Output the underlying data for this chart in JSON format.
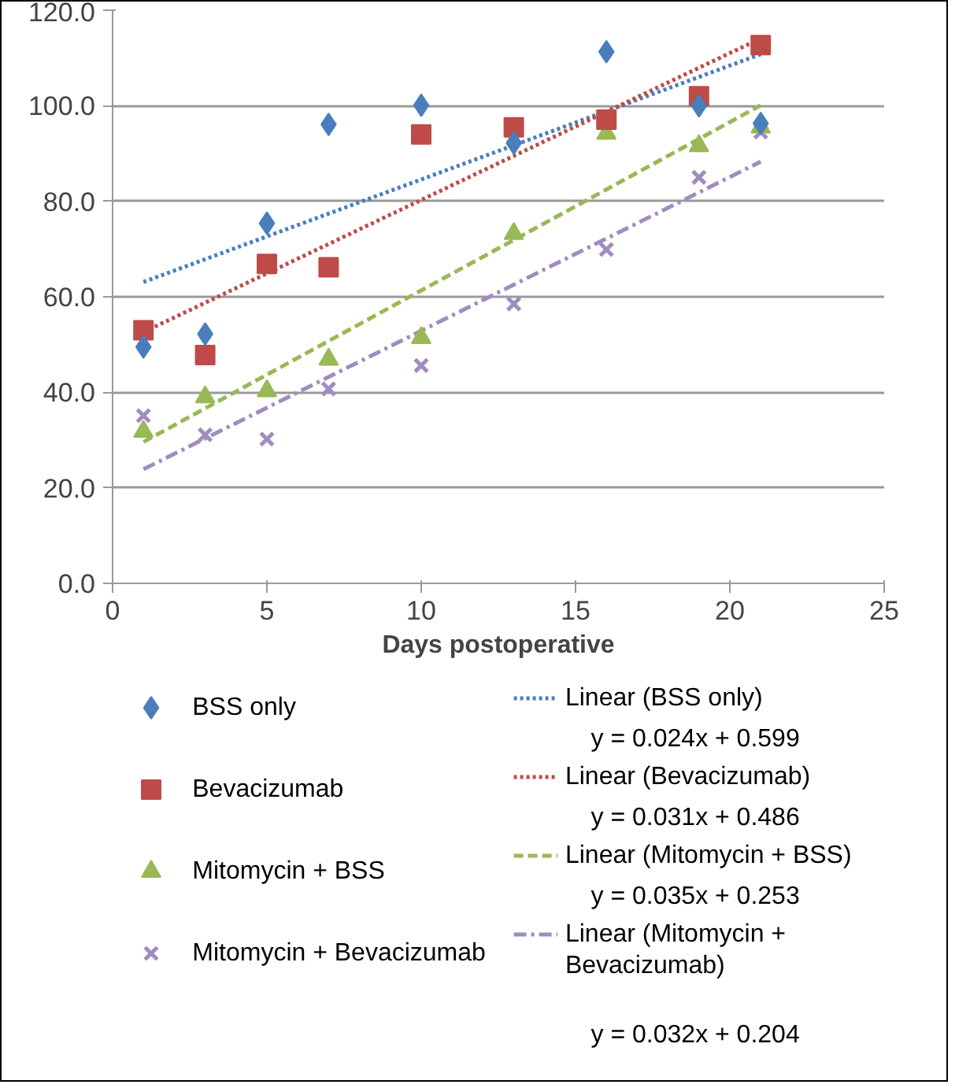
{
  "chart_data": {
    "type": "scatter",
    "xlabel": "Days postoperative",
    "xlim": [
      0,
      25
    ],
    "xticks": [
      0,
      5,
      10,
      15,
      20,
      25
    ],
    "ylim": [
      0,
      120
    ],
    "yticks": [
      {
        "value": 0,
        "label": "0.0"
      },
      {
        "value": 20,
        "label": "20.0"
      },
      {
        "value": 40,
        "label": "40.0"
      },
      {
        "value": 60,
        "label": "60.0"
      },
      {
        "value": 80,
        "label": "80.0"
      },
      {
        "value": 100,
        "label": "100.0"
      },
      {
        "value": 120,
        "label": "120.0"
      }
    ],
    "grid": "y",
    "legend": "bottom",
    "series": [
      {
        "name": "BSS only",
        "color": "#4a7ebb",
        "marker": "diamond",
        "x": [
          1,
          3,
          5,
          7,
          10,
          13,
          16,
          19,
          21
        ],
        "values": [
          49.5,
          52.2,
          75.4,
          96.1,
          100.1,
          92.2,
          111.3,
          100,
          96.3
        ]
      },
      {
        "name": "Bevacizumab",
        "color": "#be4b48",
        "marker": "square",
        "x": [
          1,
          3,
          5,
          7,
          10,
          13,
          16,
          19,
          21
        ],
        "values": [
          53.0,
          47.8,
          66.9,
          66.2,
          94.0,
          95.5,
          97.1,
          102,
          112.7
        ]
      },
      {
        "name": "Mitomycin + BSS",
        "color": "#98b954",
        "marker": "triangle",
        "x": [
          1,
          3,
          5,
          7,
          10,
          13,
          16,
          19,
          21
        ],
        "values": [
          31.8,
          39.0,
          40.3,
          46.9,
          51.4,
          73.2,
          94.2,
          91.6,
          95.5
        ]
      },
      {
        "name": "Mitomycin + Bevacizumab",
        "color": "#a08cbf",
        "marker": "cross",
        "x": [
          1,
          3,
          5,
          7,
          10,
          13,
          16,
          19,
          21
        ],
        "values": [
          35.1,
          31.1,
          30.2,
          40.7,
          45.6,
          58.5,
          69.9,
          85.0,
          94.5
        ]
      },
      {
        "name": "Linear (BSS only)",
        "type": "line",
        "color": "#4a7ebb",
        "line_style": "dotted",
        "x": [
          1,
          21
        ],
        "values": [
          63.1,
          110.8
        ]
      },
      {
        "name": "Linear (Bevacizumab)",
        "type": "line",
        "color": "#be4b48",
        "line_style": "dotted",
        "x": [
          1,
          21
        ],
        "values": [
          52.6,
          114.1
        ]
      },
      {
        "name": "Linear (Mitomycin + BSS)",
        "type": "line",
        "color": "#98b954",
        "line_style": "dashed",
        "x": [
          1,
          21
        ],
        "values": [
          29.6,
          100.1
        ]
      },
      {
        "name": "Linear (Mitomycin + Bevacizumab)",
        "type": "line",
        "color": "#a08cbf",
        "line_style": "dashdot",
        "x": [
          1,
          21
        ],
        "values": [
          23.9,
          88.3
        ]
      }
    ],
    "annotations": [
      "y = 0.024x + 0.599",
      "y = 0.031x + 0.486",
      "y = 0.035x + 0.253",
      "y = 0.032x + 0.204"
    ]
  }
}
